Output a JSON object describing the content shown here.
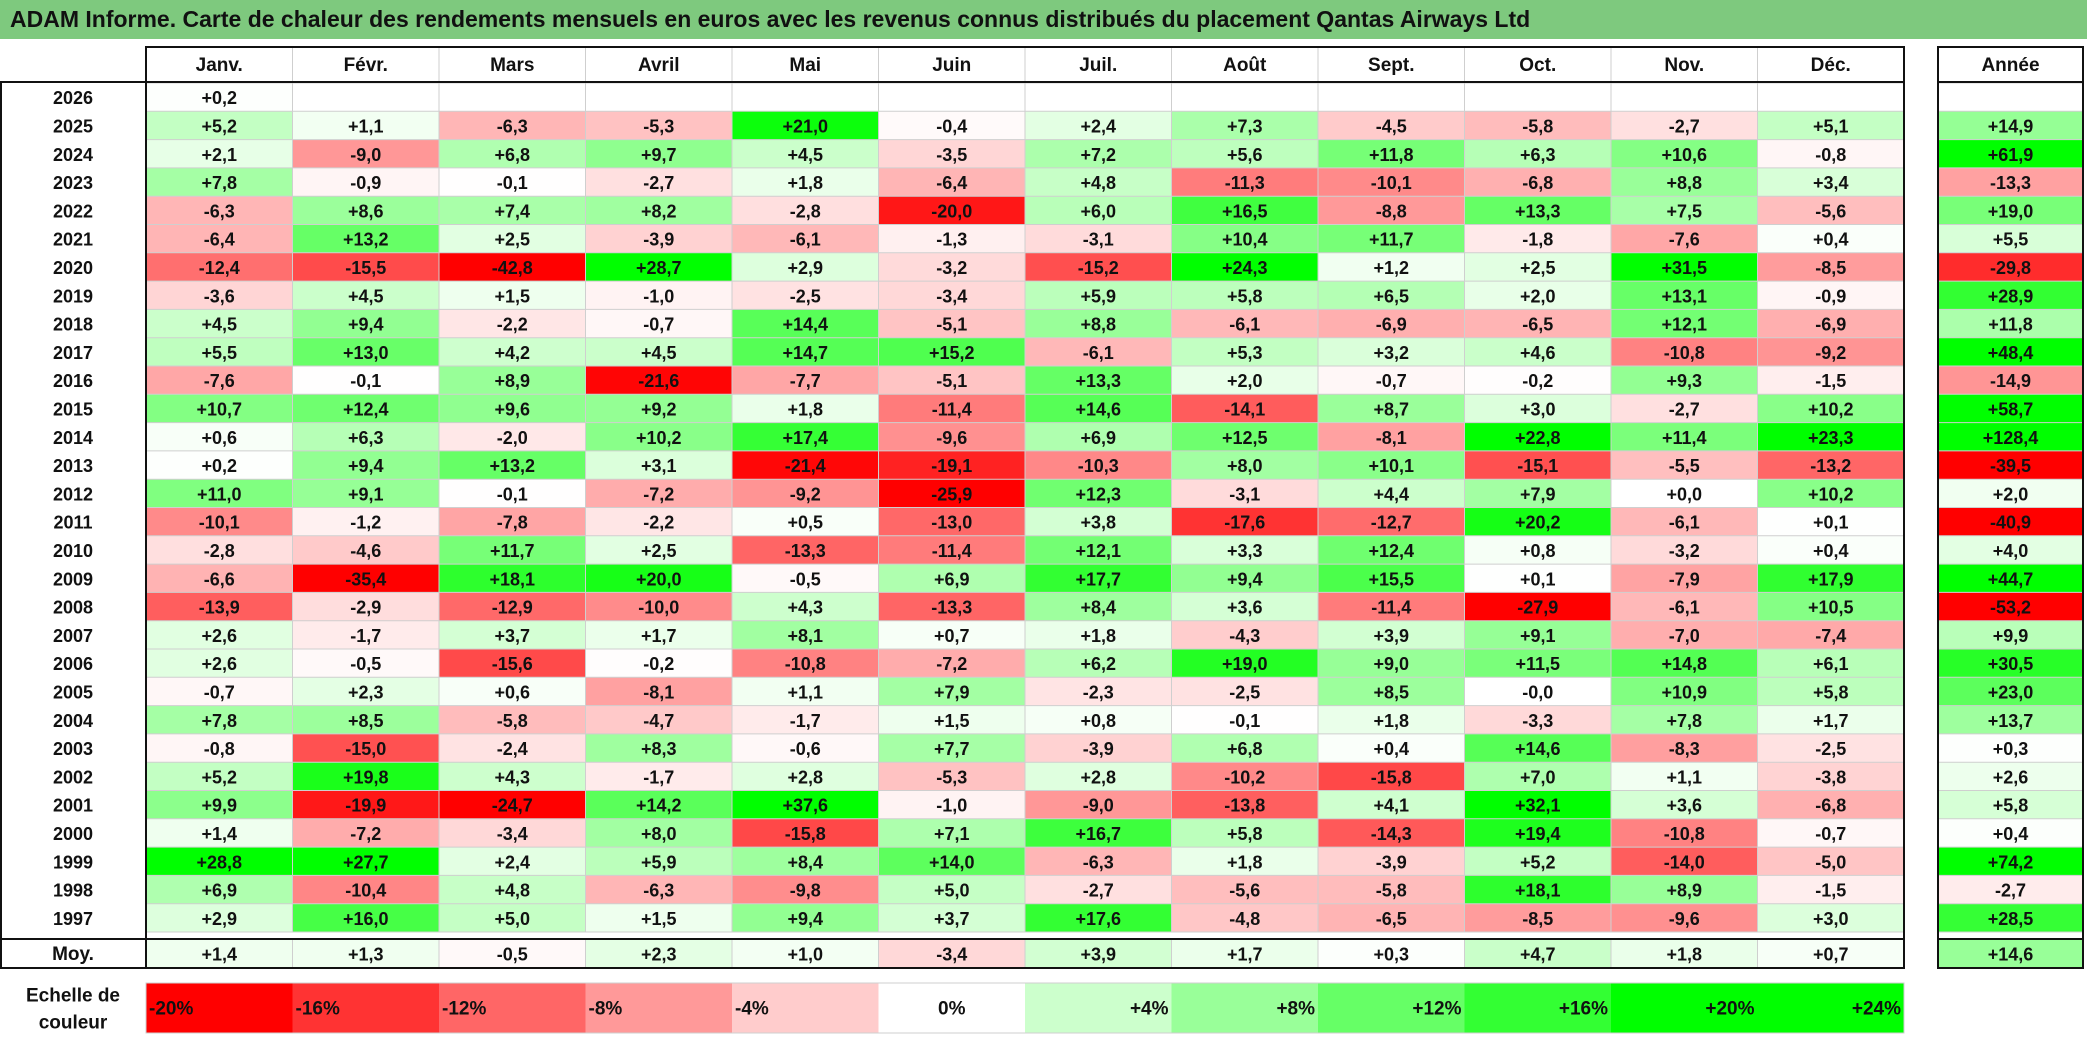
{
  "title": "ADAM Informe. Carte de chaleur des rendements mensuels en euros avec les revenus connus distribués du placement Qantas Airways Ltd",
  "chart_data": {
    "type": "heatmap",
    "title": "ADAM Informe. Carte de chaleur des rendements mensuels en euros avec les revenus connus distribués du placement Qantas Airways Ltd",
    "months": [
      "Janv.",
      "Févr.",
      "Mars",
      "Avril",
      "Mai",
      "Juin",
      "Juil.",
      "Août",
      "Sept.",
      "Oct.",
      "Nov.",
      "Déc."
    ],
    "year_header": "Année",
    "rows": [
      {
        "year": "2026",
        "values": [
          "+0,2",
          "",
          "",
          "",
          "",
          "",
          "",
          "",
          "",
          "",
          "",
          ""
        ],
        "annual": ""
      },
      {
        "year": "2025",
        "values": [
          "+5,2",
          "+1,1",
          "-6,3",
          "-5,3",
          "+21,0",
          "-0,4",
          "+2,4",
          "+7,3",
          "-4,5",
          "-5,8",
          "-2,7",
          "+5,1"
        ],
        "annual": "+14,9"
      },
      {
        "year": "2024",
        "values": [
          "+2,1",
          "-9,0",
          "+6,8",
          "+9,7",
          "+4,5",
          "-3,5",
          "+7,2",
          "+5,6",
          "+11,8",
          "+6,3",
          "+10,6",
          "-0,8"
        ],
        "annual": "+61,9"
      },
      {
        "year": "2023",
        "values": [
          "+7,8",
          "-0,9",
          "-0,1",
          "-2,7",
          "+1,8",
          "-6,4",
          "+4,8",
          "-11,3",
          "-10,1",
          "-6,8",
          "+8,8",
          "+3,4"
        ],
        "annual": "-13,3"
      },
      {
        "year": "2022",
        "values": [
          "-6,3",
          "+8,6",
          "+7,4",
          "+8,2",
          "-2,8",
          "-20,0",
          "+6,0",
          "+16,5",
          "-8,8",
          "+13,3",
          "+7,5",
          "-5,6"
        ],
        "annual": "+19,0"
      },
      {
        "year": "2021",
        "values": [
          "-6,4",
          "+13,2",
          "+2,5",
          "-3,9",
          "-6,1",
          "-1,3",
          "-3,1",
          "+10,4",
          "+11,7",
          "-1,8",
          "-7,6",
          "+0,4"
        ],
        "annual": "+5,5"
      },
      {
        "year": "2020",
        "values": [
          "-12,4",
          "-15,5",
          "-42,8",
          "+28,7",
          "+2,9",
          "-3,2",
          "-15,2",
          "+24,3",
          "+1,2",
          "+2,5",
          "+31,5",
          "-8,5"
        ],
        "annual": "-29,8"
      },
      {
        "year": "2019",
        "values": [
          "-3,6",
          "+4,5",
          "+1,5",
          "-1,0",
          "-2,5",
          "-3,4",
          "+5,9",
          "+5,8",
          "+6,5",
          "+2,0",
          "+13,1",
          "-0,9"
        ],
        "annual": "+28,9"
      },
      {
        "year": "2018",
        "values": [
          "+4,5",
          "+9,4",
          "-2,2",
          "-0,7",
          "+14,4",
          "-5,1",
          "+8,8",
          "-6,1",
          "-6,9",
          "-6,5",
          "+12,1",
          "-6,9"
        ],
        "annual": "+11,8"
      },
      {
        "year": "2017",
        "values": [
          "+5,5",
          "+13,0",
          "+4,2",
          "+4,5",
          "+14,7",
          "+15,2",
          "-6,1",
          "+5,3",
          "+3,2",
          "+4,6",
          "-10,8",
          "-9,2"
        ],
        "annual": "+48,4"
      },
      {
        "year": "2016",
        "values": [
          "-7,6",
          "-0,1",
          "+8,9",
          "-21,6",
          "-7,7",
          "-5,1",
          "+13,3",
          "+2,0",
          "-0,7",
          "-0,2",
          "+9,3",
          "-1,5"
        ],
        "annual": "-14,9"
      },
      {
        "year": "2015",
        "values": [
          "+10,7",
          "+12,4",
          "+9,6",
          "+9,2",
          "+1,8",
          "-11,4",
          "+14,6",
          "-14,1",
          "+8,7",
          "+3,0",
          "-2,7",
          "+10,2"
        ],
        "annual": "+58,7"
      },
      {
        "year": "2014",
        "values": [
          "+0,6",
          "+6,3",
          "-2,0",
          "+10,2",
          "+17,4",
          "-9,6",
          "+6,9",
          "+12,5",
          "-8,1",
          "+22,8",
          "+11,4",
          "+23,3"
        ],
        "annual": "+128,4"
      },
      {
        "year": "2013",
        "values": [
          "+0,2",
          "+9,4",
          "+13,2",
          "+3,1",
          "-21,4",
          "-19,1",
          "-10,3",
          "+8,0",
          "+10,1",
          "-15,1",
          "-5,5",
          "-13,2"
        ],
        "annual": "-39,5"
      },
      {
        "year": "2012",
        "values": [
          "+11,0",
          "+9,1",
          "-0,1",
          "-7,2",
          "-9,2",
          "-25,9",
          "+12,3",
          "-3,1",
          "+4,4",
          "+7,9",
          "+0,0",
          "+10,2"
        ],
        "annual": "+2,0"
      },
      {
        "year": "2011",
        "values": [
          "-10,1",
          "-1,2",
          "-7,8",
          "-2,2",
          "+0,5",
          "-13,0",
          "+3,8",
          "-17,6",
          "-12,7",
          "+20,2",
          "-6,1",
          "+0,1"
        ],
        "annual": "-40,9"
      },
      {
        "year": "2010",
        "values": [
          "-2,8",
          "-4,6",
          "+11,7",
          "+2,5",
          "-13,3",
          "-11,4",
          "+12,1",
          "+3,3",
          "+12,4",
          "+0,8",
          "-3,2",
          "+0,4"
        ],
        "annual": "+4,0"
      },
      {
        "year": "2009",
        "values": [
          "-6,6",
          "-35,4",
          "+18,1",
          "+20,0",
          "-0,5",
          "+6,9",
          "+17,7",
          "+9,4",
          "+15,5",
          "+0,1",
          "-7,9",
          "+17,9"
        ],
        "annual": "+44,7"
      },
      {
        "year": "2008",
        "values": [
          "-13,9",
          "-2,9",
          "-12,9",
          "-10,0",
          "+4,3",
          "-13,3",
          "+8,4",
          "+3,6",
          "-11,4",
          "-27,9",
          "-6,1",
          "+10,5"
        ],
        "annual": "-53,2"
      },
      {
        "year": "2007",
        "values": [
          "+2,6",
          "-1,7",
          "+3,7",
          "+1,7",
          "+8,1",
          "+0,7",
          "+1,8",
          "-4,3",
          "+3,9",
          "+9,1",
          "-7,0",
          "-7,4"
        ],
        "annual": "+9,9"
      },
      {
        "year": "2006",
        "values": [
          "+2,6",
          "-0,5",
          "-15,6",
          "-0,2",
          "-10,8",
          "-7,2",
          "+6,2",
          "+19,0",
          "+9,0",
          "+11,5",
          "+14,8",
          "+6,1"
        ],
        "annual": "+30,5"
      },
      {
        "year": "2005",
        "values": [
          "-0,7",
          "+2,3",
          "+0,6",
          "-8,1",
          "+1,1",
          "+7,9",
          "-2,3",
          "-2,5",
          "+8,5",
          "-0,0",
          "+10,9",
          "+5,8"
        ],
        "annual": "+23,0"
      },
      {
        "year": "2004",
        "values": [
          "+7,8",
          "+8,5",
          "-5,8",
          "-4,7",
          "-1,7",
          "+1,5",
          "+0,8",
          "-0,1",
          "+1,8",
          "-3,3",
          "+7,8",
          "+1,7"
        ],
        "annual": "+13,7"
      },
      {
        "year": "2003",
        "values": [
          "-0,8",
          "-15,0",
          "-2,4",
          "+8,3",
          "-0,6",
          "+7,7",
          "-3,9",
          "+6,8",
          "+0,4",
          "+14,6",
          "-8,3",
          "-2,5"
        ],
        "annual": "+0,3"
      },
      {
        "year": "2002",
        "values": [
          "+5,2",
          "+19,8",
          "+4,3",
          "-1,7",
          "+2,8",
          "-5,3",
          "+2,8",
          "-10,2",
          "-15,8",
          "+7,0",
          "+1,1",
          "-3,8"
        ],
        "annual": "+2,6"
      },
      {
        "year": "2001",
        "values": [
          "+9,9",
          "-19,9",
          "-24,7",
          "+14,2",
          "+37,6",
          "-1,0",
          "-9,0",
          "-13,8",
          "+4,1",
          "+32,1",
          "+3,6",
          "-6,8"
        ],
        "annual": "+5,8"
      },
      {
        "year": "2000",
        "values": [
          "+1,4",
          "-7,2",
          "-3,4",
          "+8,0",
          "-15,8",
          "+7,1",
          "+16,7",
          "+5,8",
          "-14,3",
          "+19,4",
          "-10,8",
          "-0,7"
        ],
        "annual": "+0,4"
      },
      {
        "year": "1999",
        "values": [
          "+28,8",
          "+27,7",
          "+2,4",
          "+5,9",
          "+8,4",
          "+14,0",
          "-6,3",
          "+1,8",
          "-3,9",
          "+5,2",
          "-14,0",
          "-5,0"
        ],
        "annual": "+74,2"
      },
      {
        "year": "1998",
        "values": [
          "+6,9",
          "-10,4",
          "+4,8",
          "-6,3",
          "-9,8",
          "+5,0",
          "-2,7",
          "-5,6",
          "-5,8",
          "+18,1",
          "+8,9",
          "-1,5"
        ],
        "annual": "-2,7"
      },
      {
        "year": "1997",
        "values": [
          "+2,9",
          "+16,0",
          "+5,0",
          "+1,5",
          "+9,4",
          "+3,7",
          "+17,6",
          "-4,8",
          "-6,5",
          "-8,5",
          "-9,6",
          "+3,0"
        ],
        "annual": "+28,5"
      }
    ],
    "average": {
      "label": "Moy.",
      "values": [
        "+1,4",
        "+1,3",
        "-0,5",
        "+2,3",
        "+1,0",
        "-3,4",
        "+3,9",
        "+1,7",
        "+0,3",
        "+4,7",
        "+1,8",
        "+0,7"
      ],
      "annual": "+14,6"
    },
    "scale": {
      "label_line1": "Echelle de",
      "label_line2": "couleur",
      "steps": [
        {
          "value": -20,
          "label": "-20%"
        },
        {
          "value": -16,
          "label": "-16%"
        },
        {
          "value": -12,
          "label": "-12%"
        },
        {
          "value": -8,
          "label": "-8%"
        },
        {
          "value": -4,
          "label": "-4%"
        },
        {
          "value": 0,
          "label": "0%"
        },
        {
          "value": 4,
          "label": "+4%"
        },
        {
          "value": 8,
          "label": "+8%"
        },
        {
          "value": 12,
          "label": "+12%"
        },
        {
          "value": 16,
          "label": "+16%"
        },
        {
          "value": 20,
          "label": "+20%"
        },
        {
          "value": 24,
          "label": "+24%"
        }
      ]
    },
    "colors": {
      "title_bar": "#7ec97e",
      "negative_max": "#ff0000",
      "positive_max": "#00ff00",
      "neutral": "#ffffff"
    }
  }
}
